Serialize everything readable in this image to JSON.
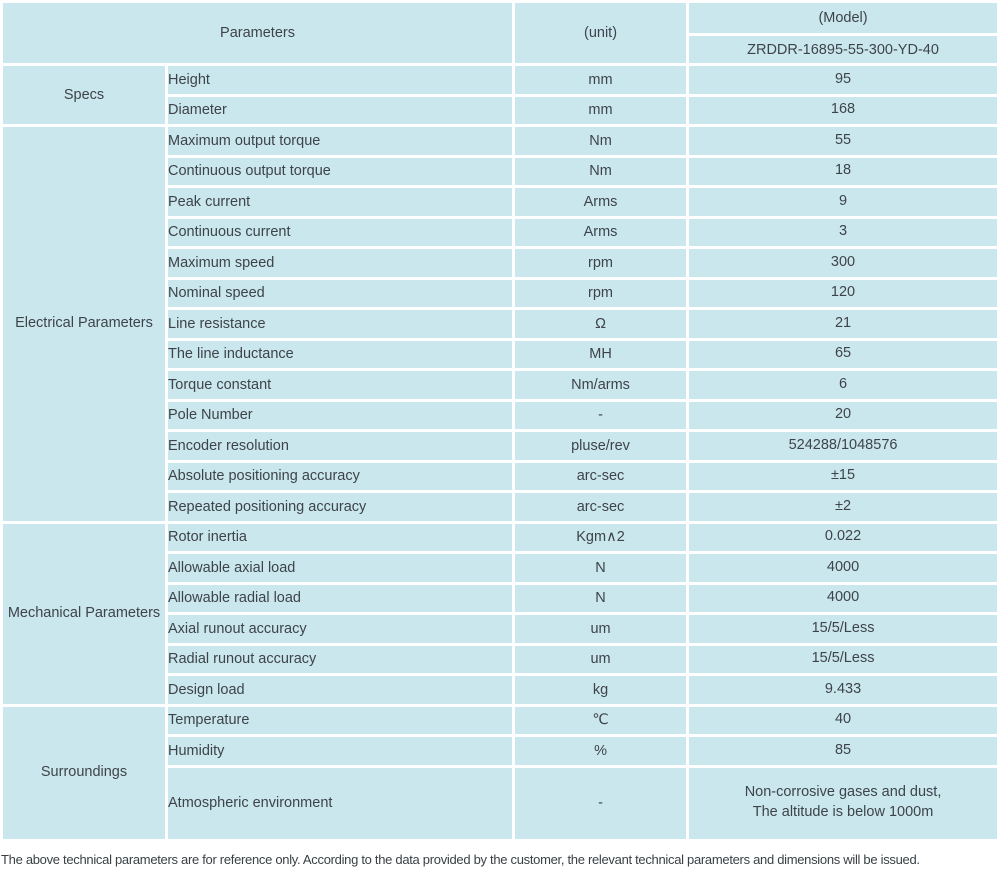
{
  "colors": {
    "header_bg": "#92d5c8",
    "cell_bg": "#cbe7ee",
    "border": "#ffffff",
    "text": "#3d4449"
  },
  "table": {
    "header": {
      "parameters": "Parameters",
      "unit": "(unit)",
      "model": "(Model)",
      "model_value": "ZRDDR-16895-55-300-YD-40"
    },
    "sections": [
      {
        "label": "Specs",
        "rows": [
          {
            "param": "Height",
            "unit": "mm",
            "value": "95"
          },
          {
            "param": "Diameter",
            "unit": "mm",
            "value": "168"
          }
        ]
      },
      {
        "label": "Electrical Parameters",
        "rows": [
          {
            "param": "Maximum output torque",
            "unit": "Nm",
            "value": "55"
          },
          {
            "param": "Continuous output torque",
            "unit": "Nm",
            "value": "18"
          },
          {
            "param": "Peak current",
            "unit": "Arms",
            "value": "9"
          },
          {
            "param": "Continuous current",
            "unit": "Arms",
            "value": "3"
          },
          {
            "param": "Maximum speed",
            "unit": "rpm",
            "value": "300"
          },
          {
            "param": "Nominal speed",
            "unit": "rpm",
            "value": "120"
          },
          {
            "param": "Line resistance",
            "unit": "Ω",
            "value": "21"
          },
          {
            "param": "The line inductance",
            "unit": "MH",
            "value": "65"
          },
          {
            "param": "Torque constant",
            "unit": "Nm/arms",
            "value": "6"
          },
          {
            "param": "Pole Number",
            "unit": "-",
            "value": "20"
          },
          {
            "param": "Encoder resolution",
            "unit": "pluse/rev",
            "value": "524288/1048576"
          },
          {
            "param": "Absolute positioning accuracy",
            "unit": "arc-sec",
            "value": "±15"
          },
          {
            "param": "Repeated positioning accuracy",
            "unit": "arc-sec",
            "value": "±2"
          }
        ]
      },
      {
        "label": "Mechanical Parameters",
        "rows": [
          {
            "param": "Rotor inertia",
            "unit": "Kgm∧2",
            "value": "0.022"
          },
          {
            "param": "Allowable axial load",
            "unit": "N",
            "value": "4000"
          },
          {
            "param": "Allowable radial load",
            "unit": "N",
            "value": "4000"
          },
          {
            "param": "Axial runout accuracy",
            "unit": "um",
            "value": "15/5/Less"
          },
          {
            "param": "Radial runout accuracy",
            "unit": "um",
            "value": "15/5/Less"
          },
          {
            "param": "Design load",
            "unit": "kg",
            "value": "9.433"
          }
        ]
      },
      {
        "label": "Surroundings",
        "rows": [
          {
            "param": "Temperature",
            "unit": "℃",
            "value": "40"
          },
          {
            "param": "Humidity",
            "unit": "%",
            "value": "85"
          },
          {
            "param": "Atmospheric environment",
            "unit": "-",
            "value": "Non-corrosive gases and dust,\nThe altitude is below 1000m",
            "tall": true
          }
        ]
      }
    ]
  },
  "footer": {
    "note": "The above technical parameters are for reference only. According to the data provided by the customer, the relevant technical parameters and dimensions will be issued."
  }
}
